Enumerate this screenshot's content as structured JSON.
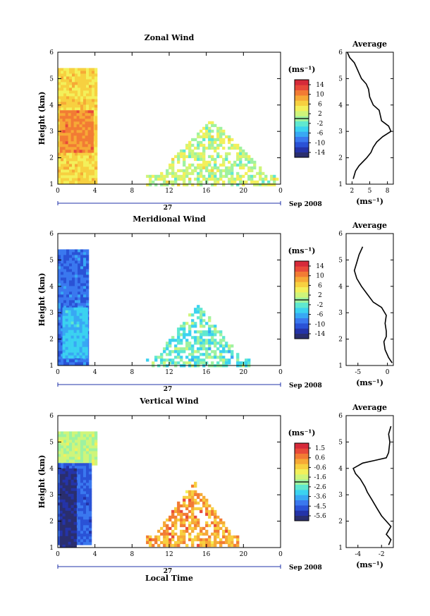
{
  "figure": {
    "xlabel": "Local Time",
    "date_label": "Sep 2008",
    "day_label": "27",
    "unit_label": "(ms⁻¹)",
    "ylabel": "Height (km)",
    "avg_title": "Average"
  },
  "colormap": [
    "#2a2e6e",
    "#2433a8",
    "#2a52d6",
    "#3a78ef",
    "#38a8f4",
    "#3bd2f0",
    "#5fe8d0",
    "#9ef2a0",
    "#cff57a",
    "#f3f05a",
    "#f7d040",
    "#f6a936",
    "#f27b34",
    "#e84a3a",
    "#d62a3a"
  ],
  "chart_data": [
    {
      "type": "heatmap",
      "title": "Zonal Wind",
      "xlabel": "Local Time",
      "ylabel": "Height (km)",
      "xlim": [
        0,
        24
      ],
      "ylim": [
        1,
        6
      ],
      "xticks": [
        "0",
        "4",
        "8",
        "12",
        "16",
        "20",
        "0"
      ],
      "yticks": [
        "1",
        "2",
        "3",
        "4",
        "5",
        "6"
      ],
      "colorbar": {
        "min": -16,
        "max": 16,
        "ticks": [
          "14",
          "10",
          "6",
          "2",
          "-2",
          "-6",
          "-10",
          "-14"
        ]
      },
      "regions": [
        {
          "x": [
            0,
            4
          ],
          "y": [
            1.1,
            5.4
          ],
          "value": 6
        },
        {
          "x": [
            0.2,
            3.6
          ],
          "y": [
            2.2,
            3.8
          ],
          "value": 10
        },
        {
          "x": [
            9.5,
            23.5
          ],
          "y": [
            1.0,
            3.6
          ],
          "value": 2
        }
      ],
      "average": {
        "title": "Average",
        "xlim": [
          1,
          9
        ],
        "xticks": [
          "2",
          "5",
          "8"
        ],
        "xlabel": "(ms⁻¹)",
        "points": [
          [
            2.2,
            1.2
          ],
          [
            2.6,
            1.5
          ],
          [
            3.2,
            1.7
          ],
          [
            4.5,
            2.0
          ],
          [
            5.2,
            2.2
          ],
          [
            5.6,
            2.4
          ],
          [
            6.2,
            2.6
          ],
          [
            7.2,
            2.8
          ],
          [
            8.6,
            3.0
          ],
          [
            8.2,
            3.2
          ],
          [
            7.0,
            3.4
          ],
          [
            6.8,
            3.6
          ],
          [
            6.6,
            3.8
          ],
          [
            5.6,
            4.0
          ],
          [
            5.0,
            4.3
          ],
          [
            4.8,
            4.6
          ],
          [
            4.4,
            4.8
          ],
          [
            3.6,
            5.0
          ],
          [
            3.2,
            5.2
          ],
          [
            2.8,
            5.4
          ],
          [
            2.4,
            5.6
          ],
          [
            1.6,
            5.8
          ],
          [
            1.2,
            6.0
          ]
        ]
      }
    },
    {
      "type": "heatmap",
      "title": "Meridional Wind",
      "xlabel": "Local Time",
      "ylabel": "Height (km)",
      "xlim": [
        0,
        24
      ],
      "ylim": [
        1,
        6
      ],
      "xticks": [
        "0",
        "4",
        "8",
        "12",
        "16",
        "20",
        "0"
      ],
      "yticks": [
        "1",
        "2",
        "3",
        "4",
        "5",
        "6"
      ],
      "colorbar": {
        "min": -16,
        "max": 16,
        "ticks": [
          "14",
          "10",
          "6",
          "2",
          "-2",
          "-6",
          "-10",
          "-14"
        ]
      },
      "regions": [
        {
          "x": [
            0,
            3.2
          ],
          "y": [
            1.1,
            5.4
          ],
          "value": -9
        },
        {
          "x": [
            0.5,
            3.0
          ],
          "y": [
            1.3,
            3.2
          ],
          "value": -5
        },
        {
          "x": [
            9.5,
            20.5
          ],
          "y": [
            1.0,
            3.4
          ],
          "value": -2
        }
      ],
      "average": {
        "title": "Average",
        "xlim": [
          -7,
          1
        ],
        "xticks": [
          "-5",
          "0"
        ],
        "xlabel": "(ms⁻¹)",
        "points": [
          [
            0.8,
            1.1
          ],
          [
            0.2,
            1.3
          ],
          [
            -0.4,
            1.6
          ],
          [
            -0.6,
            1.9
          ],
          [
            -0.2,
            2.1
          ],
          [
            -0.2,
            2.3
          ],
          [
            -0.4,
            2.6
          ],
          [
            -0.2,
            2.9
          ],
          [
            -1.0,
            3.2
          ],
          [
            -2.4,
            3.4
          ],
          [
            -3.4,
            3.7
          ],
          [
            -4.4,
            4.0
          ],
          [
            -5.2,
            4.3
          ],
          [
            -5.6,
            4.6
          ],
          [
            -5.2,
            4.9
          ],
          [
            -4.8,
            5.2
          ],
          [
            -4.2,
            5.5
          ]
        ]
      }
    },
    {
      "type": "heatmap",
      "title": "Vertical Wind",
      "xlabel": "Local Time",
      "ylabel": "Height (km)",
      "xlim": [
        0,
        24
      ],
      "ylim": [
        1,
        6
      ],
      "xticks": [
        "0",
        "4",
        "8",
        "12",
        "16",
        "20",
        "0"
      ],
      "yticks": [
        "1",
        "2",
        "3",
        "4",
        "5",
        "6"
      ],
      "colorbar": {
        "min": -6,
        "max": 2,
        "ticks": [
          "1.5",
          "0.6",
          "-0.6",
          "-1.6",
          "-2.6",
          "-3.6",
          "-4.5",
          "-5.6"
        ]
      },
      "regions": [
        {
          "x": [
            0,
            4
          ],
          "y": [
            4.2,
            5.4
          ],
          "value": -1.6
        },
        {
          "x": [
            0,
            3.6
          ],
          "y": [
            1.1,
            4.2
          ],
          "value": -4.5
        },
        {
          "x": [
            0.2,
            1.8
          ],
          "y": [
            1.1,
            4.0
          ],
          "value": -5.6
        },
        {
          "x": [
            9.5,
            19.5
          ],
          "y": [
            1.1,
            3.6
          ],
          "value": 0.2
        }
      ],
      "average": {
        "title": "Average",
        "xlim": [
          -5,
          -1
        ],
        "xticks": [
          "-4",
          "-2"
        ],
        "xlabel": "(ms⁻¹)",
        "points": [
          [
            -1.4,
            1.1
          ],
          [
            -1.2,
            1.3
          ],
          [
            -1.6,
            1.5
          ],
          [
            -1.2,
            1.8
          ],
          [
            -1.6,
            2.0
          ],
          [
            -2.0,
            2.2
          ],
          [
            -2.4,
            2.5
          ],
          [
            -2.8,
            2.8
          ],
          [
            -3.2,
            3.1
          ],
          [
            -3.4,
            3.3
          ],
          [
            -3.8,
            3.6
          ],
          [
            -4.2,
            3.8
          ],
          [
            -4.4,
            4.0
          ],
          [
            -3.6,
            4.2
          ],
          [
            -2.6,
            4.3
          ],
          [
            -1.6,
            4.4
          ],
          [
            -1.4,
            4.6
          ],
          [
            -1.3,
            5.0
          ],
          [
            -1.4,
            5.3
          ],
          [
            -1.2,
            5.6
          ]
        ]
      }
    }
  ]
}
